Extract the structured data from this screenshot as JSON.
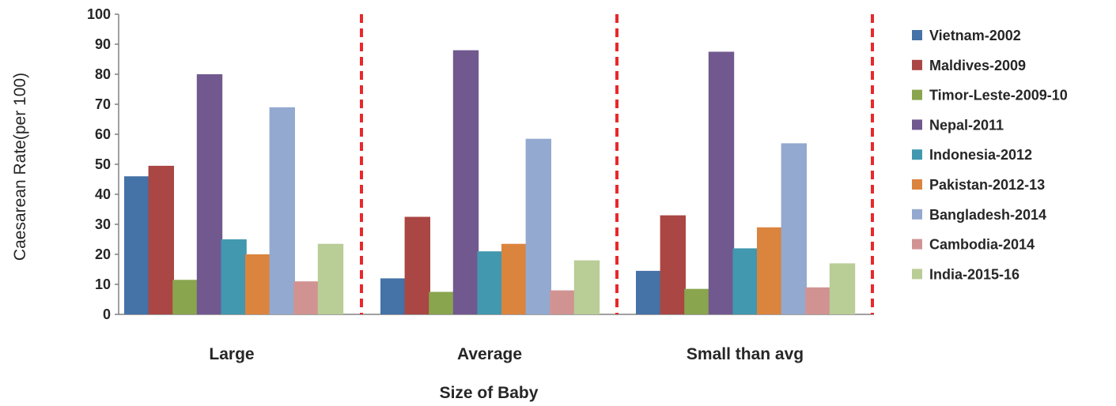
{
  "chart_data": {
    "type": "bar",
    "xlabel": "Size of Baby",
    "ylabel": "Caesarean Rate(per 100)",
    "ylim": [
      0,
      100
    ],
    "yticks": [
      0,
      10,
      20,
      30,
      40,
      50,
      60,
      70,
      80,
      90,
      100
    ],
    "grid": false,
    "legend_position": "right",
    "group_separators": "red dashed vertical lines",
    "categories": [
      "Large",
      "Average",
      "Small than avg"
    ],
    "series": [
      {
        "name": "Vietnam-2002",
        "color": "#4572A7",
        "values": [
          46,
          12,
          14.5
        ]
      },
      {
        "name": "Maldives-2009",
        "color": "#AA4643",
        "values": [
          49.5,
          32.5,
          33
        ]
      },
      {
        "name": "Timor-Leste-2009-10",
        "color": "#89A54E",
        "values": [
          11.5,
          7.5,
          8.5
        ]
      },
      {
        "name": "Nepal-2011",
        "color": "#71588F",
        "values": [
          80,
          88,
          87.5
        ]
      },
      {
        "name": "Indonesia-2012",
        "color": "#4198AF",
        "values": [
          25,
          21,
          22
        ]
      },
      {
        "name": "Pakistan-2012-13",
        "color": "#DB843D",
        "values": [
          20,
          23.5,
          29
        ]
      },
      {
        "name": "Bangladesh-2014",
        "color": "#93A9CF",
        "values": [
          69,
          58.5,
          57
        ]
      },
      {
        "name": "Cambodia-2014",
        "color": "#D19392",
        "values": [
          11,
          8,
          9
        ]
      },
      {
        "name": "India-2015-16",
        "color": "#B9CD96",
        "values": [
          23.5,
          18,
          17
        ]
      }
    ]
  }
}
